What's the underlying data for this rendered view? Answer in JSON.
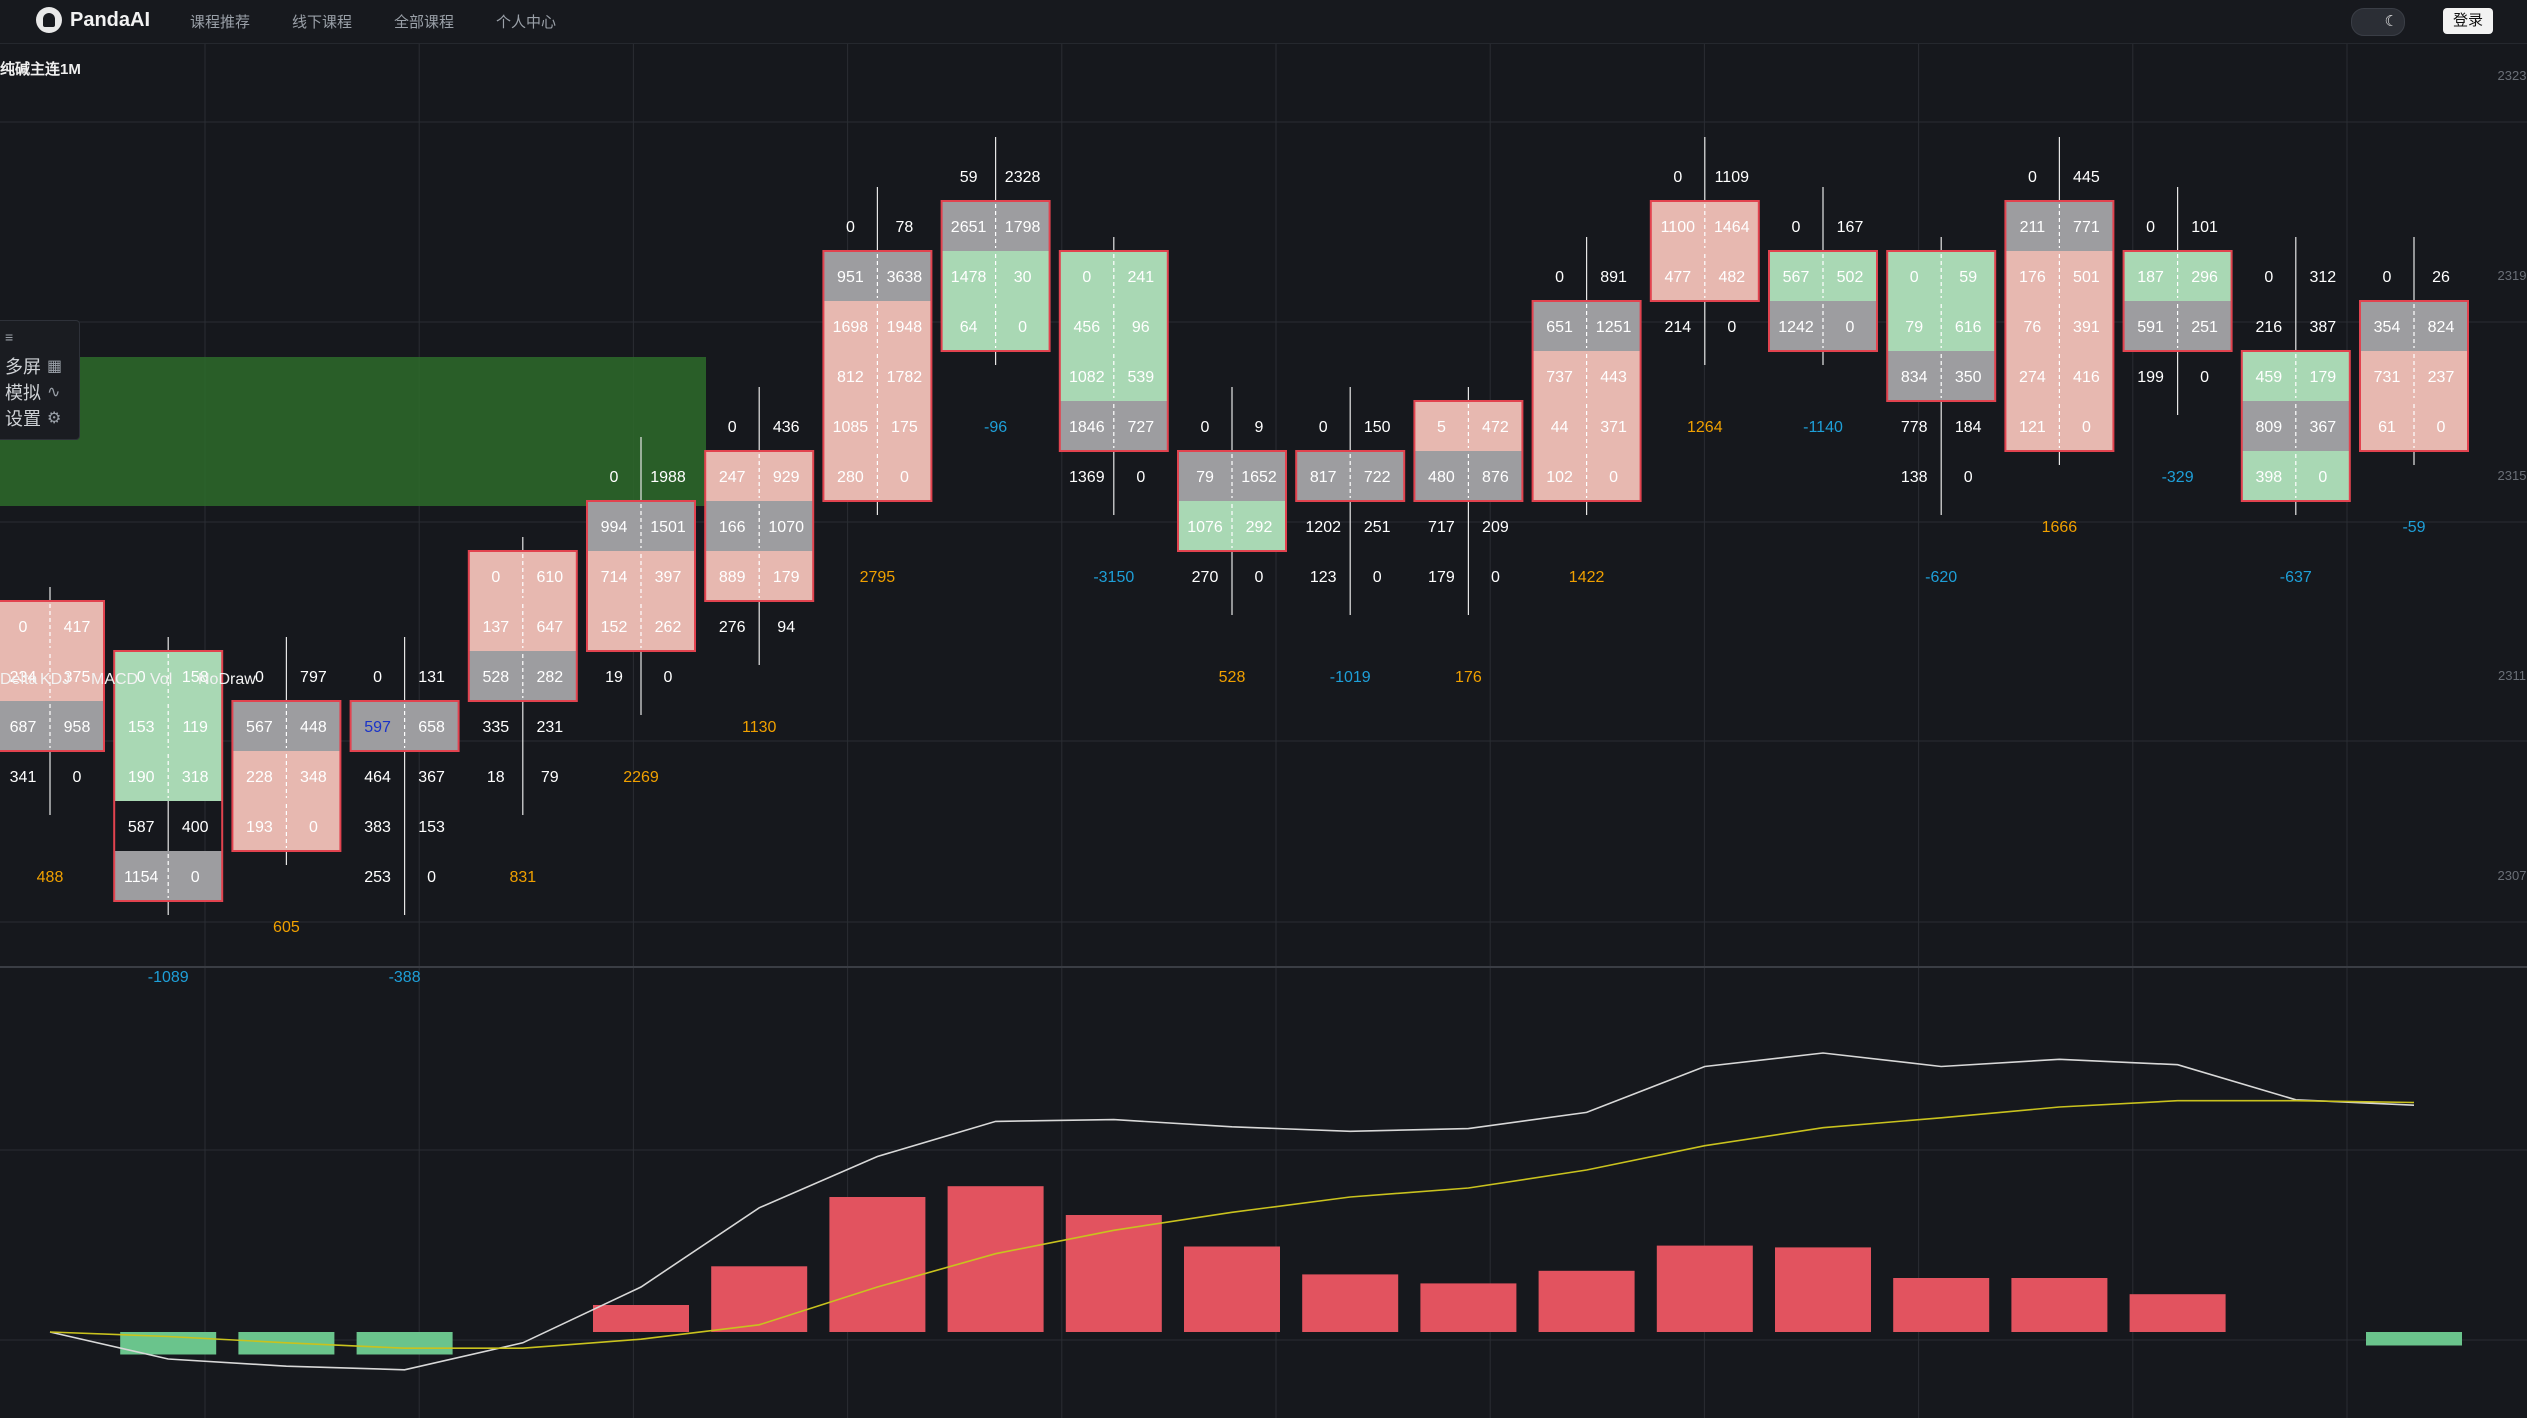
{
  "app": {
    "brand": "PandaAI",
    "nav": [
      "课程推荐",
      "线下课程",
      "全部课程",
      "个人中心"
    ],
    "login_label": "登录",
    "theme_icon": "moon-icon"
  },
  "chart_panel": {
    "title": "纯碱主连1M",
    "price_labels": [
      "2323",
      "2319",
      "2315",
      "2311",
      "2307"
    ],
    "side_menu": [
      {
        "label": "多屏",
        "icon": "grid-icon"
      },
      {
        "label": "模拟",
        "icon": "wave-icon"
      },
      {
        "label": "设置",
        "icon": "gear-icon"
      }
    ],
    "indicator_menu": [
      "Delta",
      "KDJ",
      "MACD",
      "Vol",
      "NoDraw"
    ]
  },
  "colors": {
    "background": "#16181d",
    "grid": "#2a2d33",
    "sell_cell": "#e7b8b0",
    "buy_cell": "#a9d8b4",
    "neutral_cell": "#9d9da0",
    "bar_border": "#e2434f",
    "highlight_zone": "#2d6b2a",
    "delta_positive": "#f0a000",
    "delta_negative": "#1e9fd8",
    "macd_positive_bar": "#e2535f",
    "macd_negative_bar": "#6ac48c",
    "dif_line": "#d8d8d8",
    "dea_line": "#c9c21e"
  },
  "chart_data": {
    "type": "footprint",
    "bars": [
      {
        "delta": "488",
        "rows": [
          [
            "0",
            "417",
            "s"
          ],
          [
            "234",
            "375",
            "s"
          ],
          [
            "687",
            "958",
            "n"
          ],
          [
            "341",
            "0",
            ""
          ]
        ]
      },
      {
        "delta": "-1089",
        "rows": [
          [
            "0",
            "158",
            "b"
          ],
          [
            "153",
            "119",
            "b"
          ],
          [
            "190",
            "318",
            "b"
          ],
          [
            "587",
            "400",
            ""
          ],
          [
            "1154",
            "0",
            "n"
          ]
        ]
      },
      {
        "delta": "605",
        "rows": [
          [
            "0",
            "797",
            ""
          ],
          [
            "567",
            "448",
            "n"
          ],
          [
            "228",
            "348",
            "s"
          ],
          [
            "193",
            "0",
            "s"
          ]
        ]
      },
      {
        "delta": "-388",
        "rows": [
          [
            "0",
            "131",
            ""
          ],
          [
            "597",
            "658",
            "n"
          ],
          [
            "464",
            "367",
            ""
          ],
          [
            "383",
            "153",
            ""
          ],
          [
            "253",
            "0",
            ""
          ]
        ]
      },
      {
        "delta": "831",
        "rows": [
          [
            "0",
            "610",
            "s"
          ],
          [
            "137",
            "647",
            "s"
          ],
          [
            "528",
            "282",
            "n"
          ],
          [
            "335",
            "231",
            ""
          ],
          [
            "18",
            "79",
            ""
          ]
        ]
      },
      {
        "delta": "2269",
        "rows": [
          [
            "0",
            "1988",
            ""
          ],
          [
            "994",
            "1501",
            "n"
          ],
          [
            "714",
            "397",
            "s"
          ],
          [
            "152",
            "262",
            "s"
          ],
          [
            "19",
            "0",
            ""
          ]
        ]
      },
      {
        "delta": "1130",
        "rows": [
          [
            "0",
            "436",
            ""
          ],
          [
            "247",
            "929",
            "s"
          ],
          [
            "166",
            "1070",
            "n"
          ],
          [
            "889",
            "179",
            "s"
          ],
          [
            "276",
            "94",
            ""
          ]
        ]
      },
      {
        "delta": "2795",
        "rows": [
          [
            "0",
            "78",
            ""
          ],
          [
            "951",
            "3638",
            "n"
          ],
          [
            "1698",
            "1948",
            "s"
          ],
          [
            "812",
            "1782",
            "s"
          ],
          [
            "1085",
            "175",
            "s"
          ],
          [
            "280",
            "0",
            "s"
          ]
        ]
      },
      {
        "delta": "-96",
        "rows": [
          [
            "59",
            "2328",
            ""
          ],
          [
            "2651",
            "1798",
            "n"
          ],
          [
            "1478",
            "30",
            "b"
          ],
          [
            "64",
            "0",
            "b"
          ]
        ]
      },
      {
        "delta": "-3150",
        "rows": [
          [
            "0",
            "241",
            "b"
          ],
          [
            "456",
            "96",
            "b"
          ],
          [
            "1082",
            "539",
            "b"
          ],
          [
            "1846",
            "727",
            "n"
          ],
          [
            "1369",
            "0",
            ""
          ]
        ]
      },
      {
        "delta": "528",
        "rows": [
          [
            "0",
            "9",
            ""
          ],
          [
            "79",
            "1652",
            "n"
          ],
          [
            "1076",
            "292",
            "b"
          ],
          [
            "270",
            "0",
            ""
          ]
        ]
      },
      {
        "delta": "-1019",
        "rows": [
          [
            "0",
            "150",
            ""
          ],
          [
            "817",
            "722",
            "n"
          ],
          [
            "1202",
            "251",
            ""
          ],
          [
            "123",
            "0",
            ""
          ]
        ]
      },
      {
        "delta": "176",
        "rows": [
          [
            "5",
            "472",
            "s"
          ],
          [
            "480",
            "876",
            "n"
          ],
          [
            "717",
            "209",
            ""
          ],
          [
            "179",
            "0",
            ""
          ]
        ]
      },
      {
        "delta": "1422",
        "rows": [
          [
            "0",
            "891",
            ""
          ],
          [
            "651",
            "1251",
            "n"
          ],
          [
            "737",
            "443",
            "s"
          ],
          [
            "44",
            "371",
            "s"
          ],
          [
            "102",
            "0",
            "s"
          ]
        ]
      },
      {
        "delta": "1264",
        "rows": [
          [
            "0",
            "1109",
            ""
          ],
          [
            "1100",
            "1464",
            "s"
          ],
          [
            "477",
            "482",
            "s"
          ],
          [
            "214",
            "0",
            ""
          ]
        ]
      },
      {
        "delta": "-1140",
        "rows": [
          [
            "0",
            "167",
            ""
          ],
          [
            "567",
            "502",
            "b"
          ],
          [
            "1242",
            "0",
            "n"
          ]
        ]
      },
      {
        "delta": "-620",
        "rows": [
          [
            "0",
            "59",
            "b"
          ],
          [
            "79",
            "616",
            "b"
          ],
          [
            "834",
            "350",
            "n"
          ],
          [
            "778",
            "184",
            ""
          ],
          [
            "138",
            "0",
            ""
          ]
        ]
      },
      {
        "delta": "1666",
        "rows": [
          [
            "0",
            "445",
            ""
          ],
          [
            "211",
            "771",
            "n"
          ],
          [
            "176",
            "501",
            "s"
          ],
          [
            "76",
            "391",
            "s"
          ],
          [
            "274",
            "416",
            "s"
          ],
          [
            "121",
            "0",
            "s"
          ]
        ]
      },
      {
        "delta": "-329",
        "rows": [
          [
            "0",
            "101",
            ""
          ],
          [
            "187",
            "296",
            "b"
          ],
          [
            "591",
            "251",
            "n"
          ],
          [
            "199",
            "0",
            ""
          ]
        ]
      },
      {
        "delta": "-637",
        "rows": [
          [
            "0",
            "312",
            ""
          ],
          [
            "216",
            "387",
            ""
          ],
          [
            "459",
            "179",
            "b"
          ],
          [
            "809",
            "367",
            "n"
          ],
          [
            "398",
            "0",
            "b"
          ]
        ]
      },
      {
        "delta": "-59",
        "rows": [
          [
            "0",
            "26",
            ""
          ],
          [
            "354",
            "824",
            "n"
          ],
          [
            "731",
            "237",
            "s"
          ],
          [
            "61",
            "0",
            "s"
          ]
        ]
      }
    ],
    "macd": {
      "hist": [
        0,
        -0.25,
        -0.25,
        -0.25,
        0,
        0.3,
        0.73,
        1.5,
        1.62,
        1.3,
        0.95,
        0.64,
        0.54,
        0.68,
        0.96,
        0.94,
        0.6,
        0.6,
        0.42,
        0,
        -0.15
      ],
      "dif": [
        0,
        -0.3,
        -0.38,
        -0.42,
        -0.12,
        0.5,
        1.38,
        1.95,
        2.34,
        2.36,
        2.28,
        2.23,
        2.26,
        2.44,
        2.95,
        3.1,
        2.95,
        3.03,
        2.97,
        2.58,
        2.52
      ],
      "dea": [
        0,
        -0.05,
        -0.12,
        -0.18,
        -0.18,
        -0.08,
        0.08,
        0.5,
        0.87,
        1.13,
        1.33,
        1.5,
        1.6,
        1.8,
        2.07,
        2.27,
        2.38,
        2.5,
        2.57,
        2.57,
        2.55
      ]
    }
  }
}
